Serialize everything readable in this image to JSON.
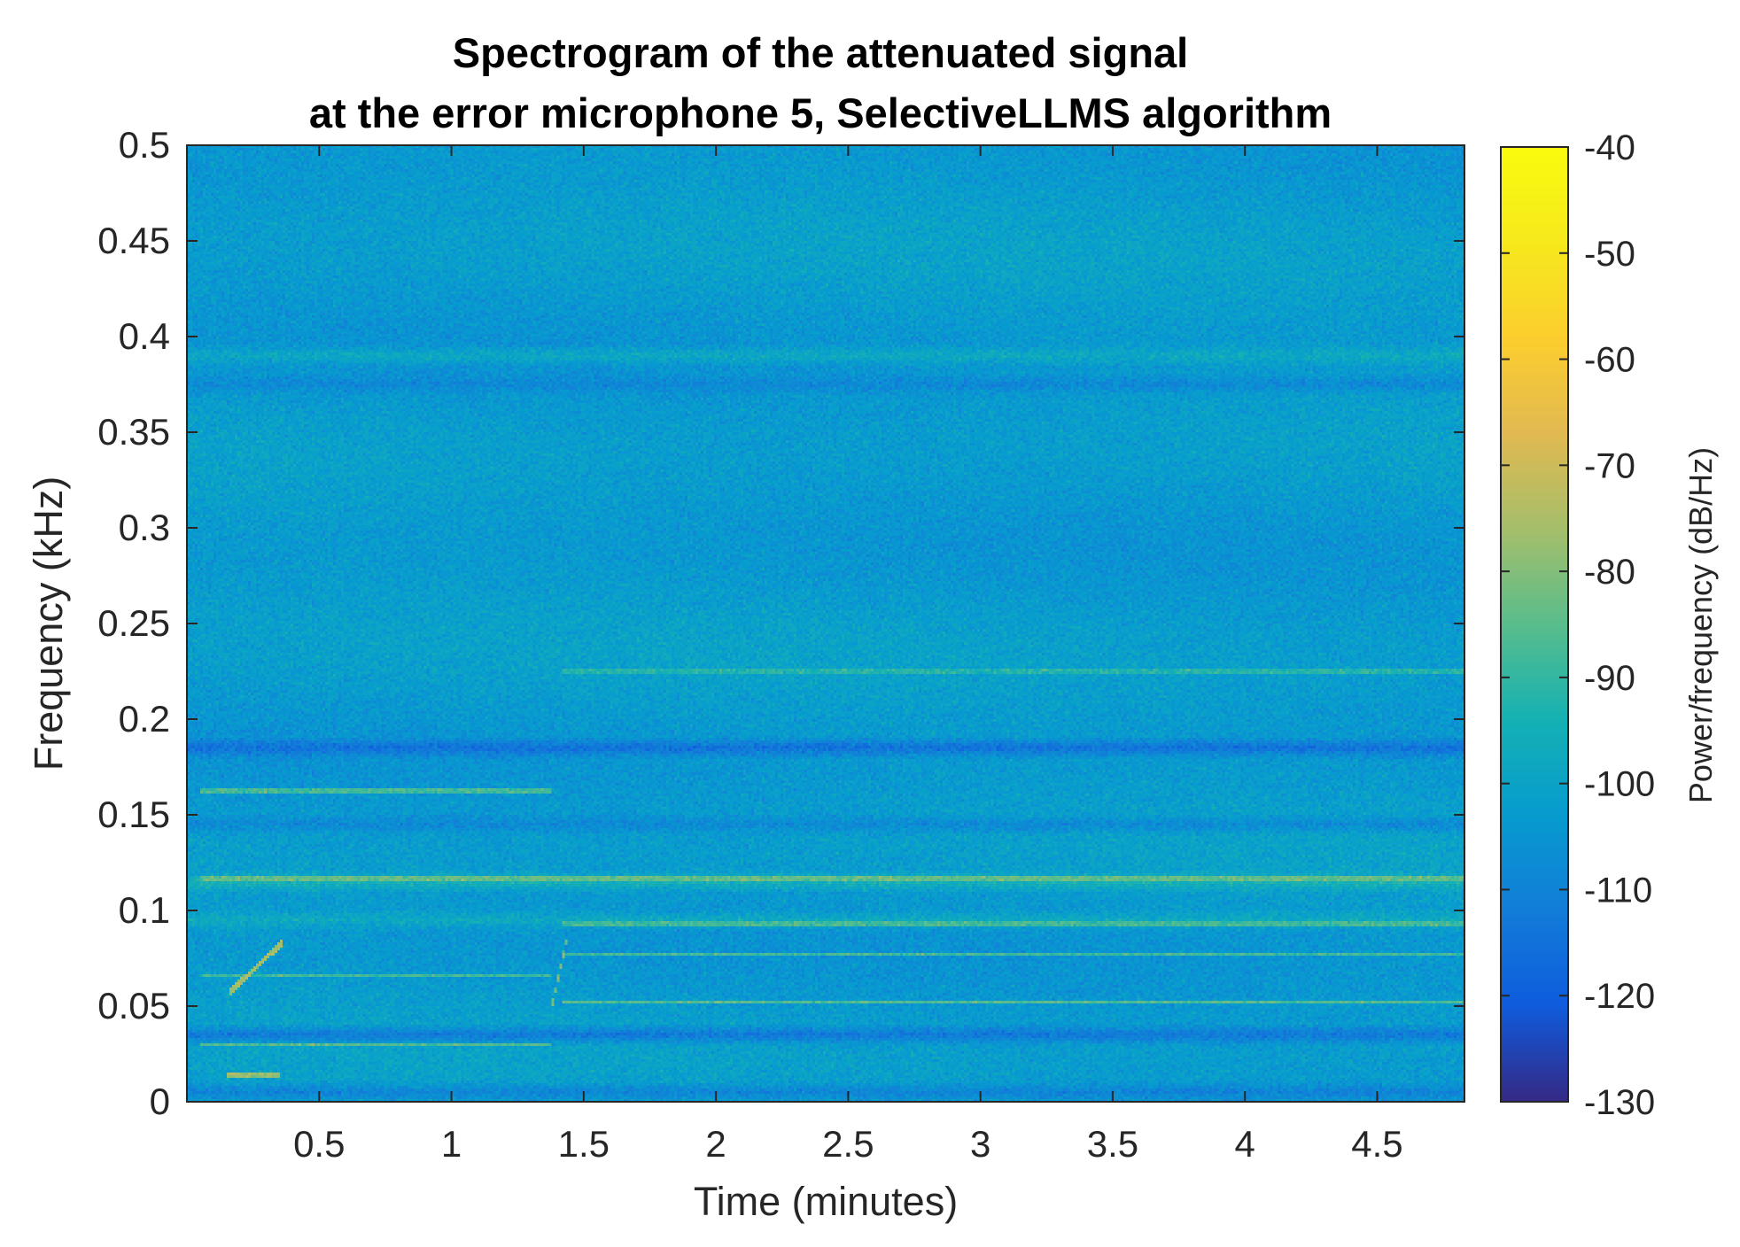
{
  "chart_data": {
    "type": "heatmap",
    "title": [
      "Spectrogram of the attenuated signal",
      "at the error microphone 5, SelectiveLLMS algorithm"
    ],
    "xlabel": "Time (minutes)",
    "ylabel": "Frequency (kHz)",
    "colorbar_label": "Power/frequency (dB/Hz)",
    "xlim": [
      0,
      4.83
    ],
    "ylim": [
      0,
      0.5
    ],
    "clim": [
      -130,
      -40
    ],
    "colormap": "parula",
    "x_ticks": [
      0.5,
      1,
      1.5,
      2,
      2.5,
      3,
      3.5,
      4,
      4.5
    ],
    "x_tick_labels": [
      "0.5",
      "1",
      "1.5",
      "2",
      "2.5",
      "3",
      "3.5",
      "4",
      "4.5"
    ],
    "y_ticks": [
      0,
      0.05,
      0.1,
      0.15,
      0.2,
      0.25,
      0.3,
      0.35,
      0.4,
      0.45,
      0.5
    ],
    "y_tick_labels": [
      "0",
      "0.05",
      "0.1",
      "0.15",
      "0.2",
      "0.25",
      "0.3",
      "0.35",
      "0.4",
      "0.45",
      "0.5"
    ],
    "colorbar_ticks": [
      -130,
      -120,
      -110,
      -100,
      -90,
      -80,
      -70,
      -60,
      -50,
      -40
    ],
    "colorbar_tick_labels": [
      "-130",
      "-120",
      "-110",
      "-100",
      "-90",
      "-80",
      "-70",
      "-60",
      "-50",
      "-40"
    ],
    "background_level_db": -103,
    "frequency_bands": [
      {
        "f_khz": 0.005,
        "db": -112
      },
      {
        "f_khz": 0.035,
        "db": -116
      },
      {
        "f_khz": 0.095,
        "db": -96
      },
      {
        "f_khz": 0.115,
        "db": -92
      },
      {
        "f_khz": 0.145,
        "db": -110
      },
      {
        "f_khz": 0.185,
        "db": -118
      },
      {
        "f_khz": 0.375,
        "db": -110
      },
      {
        "f_khz": 0.39,
        "db": -96
      }
    ],
    "tonal_lines": [
      {
        "t": [
          0.05,
          1.38
        ],
        "f_khz": 0.03,
        "db": -86
      },
      {
        "t": [
          0.05,
          1.38
        ],
        "f_khz": 0.066,
        "db": -88
      },
      {
        "t": [
          0.05,
          1.38
        ],
        "f_khz": 0.163,
        "db": -88
      },
      {
        "t": [
          0.05,
          4.83
        ],
        "f_khz": 0.117,
        "db": -84
      },
      {
        "t": [
          1.42,
          4.83
        ],
        "f_khz": 0.052,
        "db": -86
      },
      {
        "t": [
          1.42,
          4.83
        ],
        "f_khz": 0.077,
        "db": -88
      },
      {
        "t": [
          1.42,
          4.83
        ],
        "f_khz": 0.093,
        "db": -88
      },
      {
        "t": [
          1.42,
          4.83
        ],
        "f_khz": 0.225,
        "db": -92
      },
      {
        "t": [
          0.15,
          0.35
        ],
        "f_khz": 0.014,
        "db": -78
      }
    ],
    "chirps": [
      {
        "t": [
          0.16,
          0.36
        ],
        "f_khz": [
          0.057,
          0.083
        ],
        "db": -76
      },
      {
        "t": [
          1.38,
          1.44
        ],
        "f_khz": [
          0.05,
          0.087
        ],
        "db": -82
      }
    ]
  }
}
